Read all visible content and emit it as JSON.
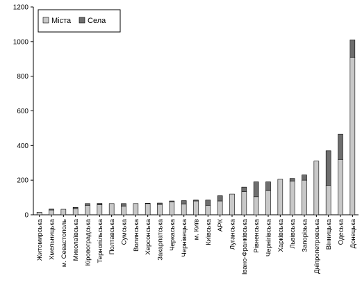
{
  "chart_data": {
    "type": "bar",
    "stacked": true,
    "categories": [
      "Житомирська",
      "Хмельницька",
      "м. Севастополь",
      "Миколаївська",
      "Кіровоградська",
      "Тернопільська",
      "Полтавська",
      "Сумська",
      "Волинська",
      "Херсонська",
      "Закарпатська",
      "Черкаська",
      "Чернівецька",
      "м. Київ",
      "Київська",
      "АРК",
      "Луганська",
      "Івано-Франківська",
      "Рівненська",
      "Чернігівська",
      "Харківська",
      "Львівська",
      "Запорізька",
      "Дніпропетровська",
      "Вінницька",
      "Одеська",
      "Донецька"
    ],
    "series": [
      {
        "name": "Міста",
        "color": "#c8c8c8",
        "values": [
          15,
          28,
          32,
          35,
          55,
          58,
          65,
          50,
          65,
          65,
          60,
          75,
          62,
          80,
          55,
          80,
          120,
          135,
          105,
          140,
          205,
          195,
          200,
          310,
          170,
          320,
          910
        ]
      },
      {
        "name": "Села",
        "color": "#6e6e6e",
        "values": [
          0,
          5,
          0,
          8,
          10,
          8,
          0,
          15,
          0,
          2,
          8,
          5,
          20,
          5,
          30,
          30,
          0,
          25,
          85,
          50,
          0,
          15,
          30,
          0,
          200,
          145,
          100
        ]
      }
    ],
    "ylim": [
      0,
      1200
    ],
    "yticks": [
      "0",
      "200",
      "400",
      "600",
      "800",
      "1000",
      "1200"
    ],
    "grid": false,
    "legend": "top-left"
  }
}
